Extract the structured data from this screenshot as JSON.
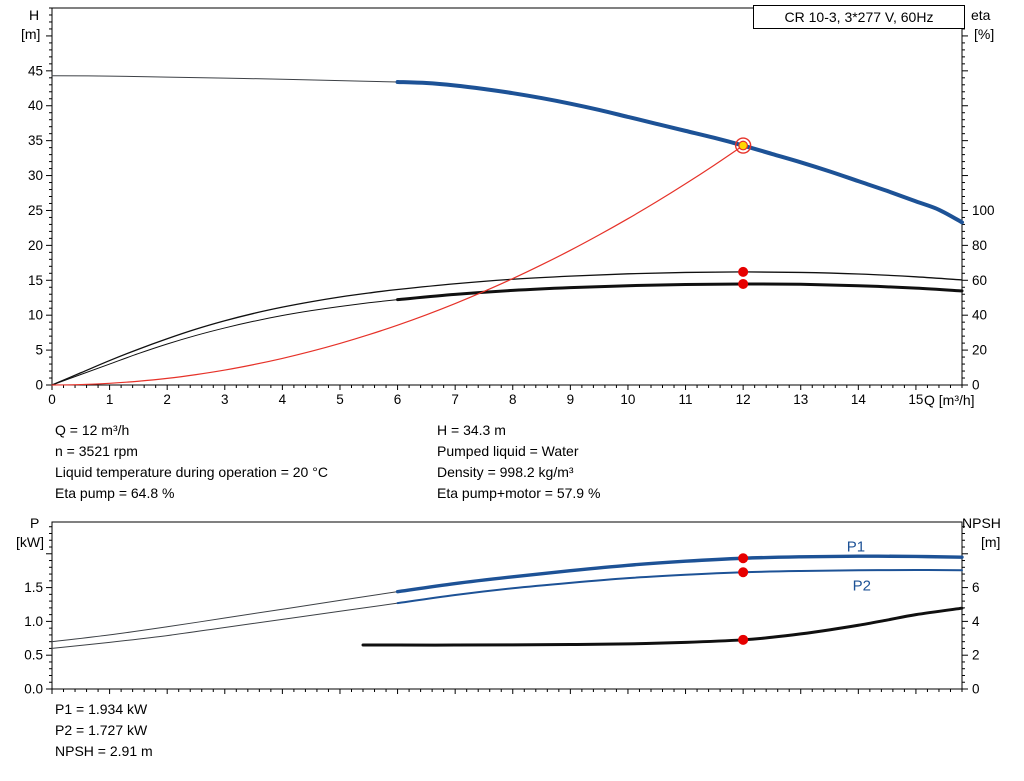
{
  "title_box": "CR 10-3, 3*277 V, 60Hz",
  "colors": {
    "curve_blue": "#1d5296",
    "curve_black": "#101010",
    "thin_line": "#3d4146",
    "system_red": "#e63229",
    "dot_red": "#e60000",
    "duty_fill": "#ffd800"
  },
  "axis_labels": {
    "top_left_1": "H",
    "top_left_2": "[m]",
    "top_right_1": "eta",
    "top_right_2": "[%]",
    "x": "Q [m³/h]",
    "bot_left_1": "P",
    "bot_left_2": "[kW]",
    "bot_right_1": "NPSH",
    "bot_right_2": "[m]"
  },
  "annotations": {
    "left": [
      "Q = 12 m³/h",
      "n = 3521 rpm",
      "Liquid temperature during operation = 20 °C",
      "Eta pump = 64.8 %"
    ],
    "right": [
      "H = 34.3 m",
      "Pumped liquid = Water",
      "Density = 998.2 kg/m³",
      "Eta pump+motor = 57.9 %"
    ],
    "bottom": [
      "P1 = 1.934 kW",
      "P2 = 1.727 kW",
      "NPSH = 2.91 m"
    ]
  },
  "chart_data": [
    {
      "id": "hq-eta",
      "type": "line",
      "title": "CR 10-3, 3*277 V, 60Hz",
      "x_axis": {
        "label": "Q [m³/h]",
        "min": 0,
        "max": 15.8,
        "tick_step": 1,
        "label_max": 15,
        "show_labels": true
      },
      "y_left": {
        "label": "H [m]",
        "min": 0,
        "max": 54,
        "tick_step": 5,
        "label_max": 45,
        "decimals": 0
      },
      "y_right": {
        "label": "eta [%]",
        "major_step": 20,
        "minor_step": 4,
        "ticks": [
          0,
          20,
          40,
          60,
          80,
          100
        ],
        "factor": 0.25
      },
      "series": [
        {
          "name": "head-curve-low-flow",
          "axis": "left",
          "color": "thin_line",
          "width": 1,
          "points": [
            [
              0,
              44.3
            ],
            [
              1,
              44.25
            ],
            [
              2,
              44.1
            ],
            [
              3,
              43.95
            ],
            [
              4,
              43.8
            ],
            [
              5,
              43.6
            ],
            [
              6,
              43.4
            ],
            [
              6.5,
              43.25
            ]
          ]
        },
        {
          "name": "eta-pump-curve",
          "axis": "right",
          "color": "curve_black",
          "width": 1.3,
          "points": [
            [
              0,
              0
            ],
            [
              0.5,
              7
            ],
            [
              1,
              14
            ],
            [
              1.5,
              20.5
            ],
            [
              2,
              26.5
            ],
            [
              2.5,
              32
            ],
            [
              3,
              36.8
            ],
            [
              3.5,
              41
            ],
            [
              4,
              44.6
            ],
            [
              4.5,
              47.7
            ],
            [
              5,
              50.4
            ],
            [
              5.5,
              52.7
            ],
            [
              6,
              54.7
            ],
            [
              7,
              58
            ],
            [
              8,
              60.6
            ],
            [
              9,
              62.4
            ],
            [
              10,
              63.7
            ],
            [
              11,
              64.5
            ],
            [
              12,
              64.8
            ],
            [
              13,
              64.5
            ],
            [
              14,
              63.6
            ],
            [
              15,
              62
            ],
            [
              15.8,
              60.2
            ]
          ]
        },
        {
          "name": "eta-pump-motor-curve-low-flow",
          "axis": "right",
          "color": "curve_black",
          "width": 1,
          "points": [
            [
              0,
              0
            ],
            [
              0.5,
              6
            ],
            [
              1,
              12
            ],
            [
              1.5,
              18
            ],
            [
              2,
              23.5
            ],
            [
              2.5,
              28.4
            ],
            [
              3,
              32.7
            ],
            [
              3.5,
              36.5
            ],
            [
              4,
              39.8
            ],
            [
              4.5,
              42.6
            ],
            [
              5,
              45
            ],
            [
              5.5,
              47.1
            ],
            [
              6,
              48.9
            ]
          ]
        },
        {
          "name": "eta-pump-motor-curve",
          "axis": "right",
          "color": "curve_black",
          "width": 3,
          "points": [
            [
              6,
              48.9
            ],
            [
              7,
              51.9
            ],
            [
              8,
              54.2
            ],
            [
              9,
              55.8
            ],
            [
              10,
              56.9
            ],
            [
              11,
              57.6
            ],
            [
              12,
              57.9
            ],
            [
              13,
              57.7
            ],
            [
              14,
              56.9
            ],
            [
              15,
              55.5
            ],
            [
              15.8,
              53.9
            ]
          ]
        },
        {
          "name": "system-curve",
          "axis": "left",
          "color": "system_red",
          "width": 1.2,
          "points": [
            [
              0,
              0
            ],
            [
              0.5,
              0.06
            ],
            [
              1,
              0.24
            ],
            [
              1.5,
              0.54
            ],
            [
              2,
              0.95
            ],
            [
              2.5,
              1.49
            ],
            [
              3,
              2.14
            ],
            [
              3.5,
              2.92
            ],
            [
              4,
              3.81
            ],
            [
              4.5,
              4.82
            ],
            [
              5,
              5.95
            ],
            [
              5.5,
              7.2
            ],
            [
              6,
              8.57
            ],
            [
              6.5,
              10.06
            ],
            [
              7,
              11.67
            ],
            [
              7.5,
              13.4
            ],
            [
              8,
              15.24
            ],
            [
              8.5,
              17.21
            ],
            [
              9,
              19.29
            ],
            [
              9.5,
              21.5
            ],
            [
              10,
              23.82
            ],
            [
              10.5,
              26.26
            ],
            [
              11,
              28.82
            ],
            [
              11.5,
              31.5
            ],
            [
              12,
              34.3
            ]
          ]
        },
        {
          "name": "head-curve",
          "axis": "left",
          "color": "curve_blue",
          "width": 4,
          "points": [
            [
              6,
              43.4
            ],
            [
              6.5,
              43.25
            ],
            [
              7,
              42.9
            ],
            [
              7.5,
              42.4
            ],
            [
              8,
              41.8
            ],
            [
              8.5,
              41.1
            ],
            [
              9,
              40.3
            ],
            [
              9.5,
              39.4
            ],
            [
              10,
              38.4
            ],
            [
              10.5,
              37.4
            ],
            [
              11,
              36.4
            ],
            [
              11.5,
              35.4
            ],
            [
              12,
              34.3
            ],
            [
              12.5,
              33.1
            ],
            [
              13,
              31.9
            ],
            [
              13.5,
              30.6
            ],
            [
              14,
              29.2
            ],
            [
              14.5,
              27.8
            ],
            [
              15,
              26.3
            ],
            [
              15.4,
              25.1
            ],
            [
              15.8,
              23.3
            ]
          ]
        }
      ],
      "markers": [
        {
          "name": "eta-pump-duty-dot",
          "x": 12,
          "value": 64.8,
          "axis": "right",
          "style": "dot"
        },
        {
          "name": "eta-pump-motor-duty-dot",
          "x": 12,
          "value": 57.9,
          "axis": "right",
          "style": "dot"
        },
        {
          "name": "duty-point",
          "x": 12,
          "value": 34.3,
          "axis": "left",
          "style": "duty"
        }
      ],
      "series_labels": []
    },
    {
      "id": "power-npsh",
      "type": "line",
      "title": "",
      "x_axis": {
        "label": "Q [m³/h]",
        "min": 0,
        "max": 15.8,
        "tick_step": 1,
        "label_max": 15,
        "show_labels": false
      },
      "y_left": {
        "label": "P [kW]",
        "min": 0,
        "max": 2.47,
        "tick_step": 0.5,
        "label_max": 1.5,
        "decimals": 1
      },
      "y_right": {
        "label": "NPSH [m]",
        "major_step": 2,
        "minor_step": 0.4,
        "ticks": [
          0,
          2,
          4,
          6
        ],
        "factor": 0.25
      },
      "series": [
        {
          "name": "p1-curve-low-flow",
          "axis": "left",
          "color": "thin_line",
          "width": 1,
          "points": [
            [
              0,
              0.7
            ],
            [
              1,
              0.8
            ],
            [
              2,
              0.92
            ],
            [
              3,
              1.05
            ],
            [
              4,
              1.18
            ],
            [
              5,
              1.31
            ],
            [
              6,
              1.44
            ]
          ]
        },
        {
          "name": "p2-curve-low-flow",
          "axis": "left",
          "color": "thin_line",
          "width": 1,
          "points": [
            [
              0,
              0.6
            ],
            [
              1,
              0.69
            ],
            [
              2,
              0.79
            ],
            [
              3,
              0.91
            ],
            [
              4,
              1.03
            ],
            [
              5,
              1.15
            ],
            [
              6,
              1.27
            ]
          ]
        },
        {
          "name": "p2-curve",
          "axis": "left",
          "color": "curve_blue",
          "width": 2,
          "points": [
            [
              6,
              1.27
            ],
            [
              7,
              1.39
            ],
            [
              8,
              1.49
            ],
            [
              9,
              1.57
            ],
            [
              10,
              1.64
            ],
            [
              11,
              1.69
            ],
            [
              12,
              1.727
            ],
            [
              13,
              1.746
            ],
            [
              14,
              1.756
            ],
            [
              15,
              1.76
            ],
            [
              15.8,
              1.757
            ]
          ]
        },
        {
          "name": "p1-curve",
          "axis": "left",
          "color": "curve_blue",
          "width": 3.4,
          "points": [
            [
              6,
              1.44
            ],
            [
              7,
              1.56
            ],
            [
              8,
              1.66
            ],
            [
              9,
              1.75
            ],
            [
              10,
              1.83
            ],
            [
              11,
              1.89
            ],
            [
              12,
              1.934
            ],
            [
              13,
              1.955
            ],
            [
              14,
              1.965
            ],
            [
              15,
              1.96
            ],
            [
              15.8,
              1.95
            ]
          ]
        },
        {
          "name": "npsh-curve",
          "axis": "right",
          "color": "curve_black",
          "width": 3,
          "points": [
            [
              5.4,
              2.6
            ],
            [
              6,
              2.6
            ],
            [
              7,
              2.6
            ],
            [
              8,
              2.61
            ],
            [
              9,
              2.63
            ],
            [
              10,
              2.67
            ],
            [
              11,
              2.76
            ],
            [
              12,
              2.91
            ],
            [
              12.5,
              3.06
            ],
            [
              13,
              3.26
            ],
            [
              13.5,
              3.5
            ],
            [
              14,
              3.77
            ],
            [
              14.5,
              4.08
            ],
            [
              15,
              4.4
            ],
            [
              15.8,
              4.78
            ]
          ]
        }
      ],
      "markers": [
        {
          "name": "p1-duty-dot",
          "x": 12,
          "value": 1.934,
          "axis": "left",
          "style": "dot"
        },
        {
          "name": "p2-duty-dot",
          "x": 12,
          "value": 1.727,
          "axis": "left",
          "style": "dot"
        },
        {
          "name": "npsh-duty-dot",
          "x": 12,
          "value": 2.91,
          "axis": "right",
          "style": "dot"
        }
      ],
      "series_labels": [
        {
          "text": "P1",
          "x": 13.8,
          "value": 2.03,
          "axis": "left",
          "color": "curve_blue"
        },
        {
          "text": "P2",
          "x": 13.9,
          "value": 1.46,
          "axis": "left",
          "color": "curve_blue"
        }
      ]
    }
  ]
}
